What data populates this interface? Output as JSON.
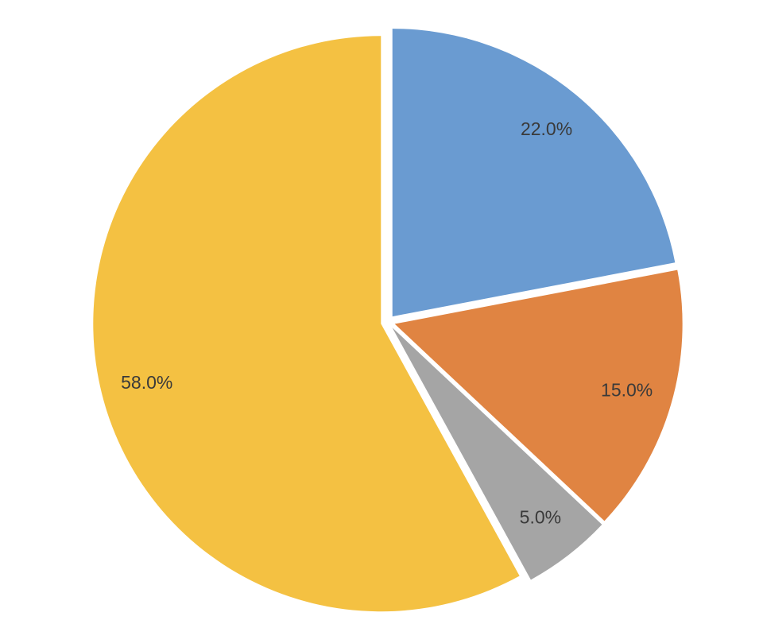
{
  "chart_data": {
    "type": "pie",
    "values": [
      22,
      15,
      5,
      58
    ],
    "value_labels": [
      "22.0%",
      "15.0%",
      "5.0%",
      "58.0%"
    ],
    "colors": [
      "#6a9bd1",
      "#e08442",
      "#a5a5a5",
      "#f4c142"
    ],
    "exploded": true
  }
}
